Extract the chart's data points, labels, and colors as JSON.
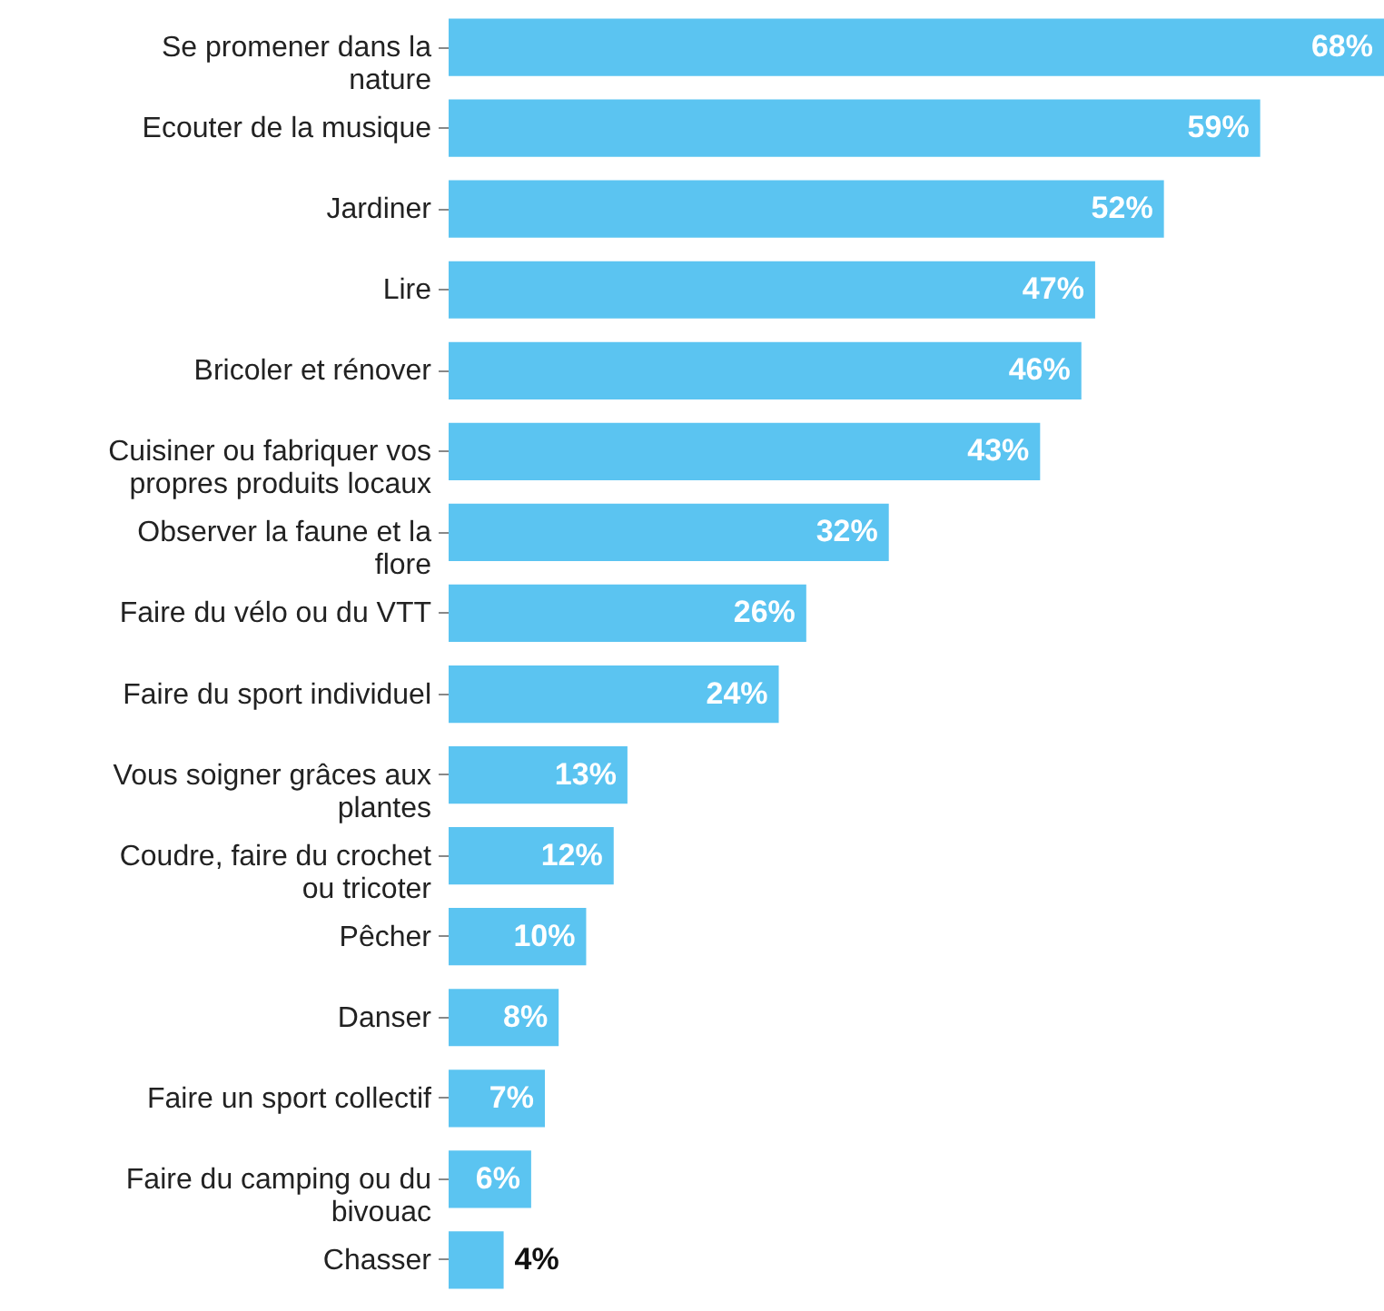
{
  "chart_data": {
    "type": "bar",
    "orientation": "horizontal",
    "color": "#5bc4f1",
    "categories": [
      "Se promener dans la nature",
      "Ecouter de la musique",
      "Jardiner",
      "Lire",
      "Bricoler et rénover",
      "Cuisiner ou fabriquer vos propres produits locaux",
      "Observer la faune et la flore",
      "Faire du vélo ou du VTT",
      "Faire du sport individuel",
      "Vous soigner grâces aux plantes",
      "Coudre, faire du crochet ou tricoter",
      "Pêcher",
      "Danser",
      "Faire un sport collectif",
      "Faire du camping ou du bivouac",
      "Chasser"
    ],
    "values": [
      68,
      59,
      52,
      47,
      46,
      43,
      32,
      26,
      24,
      13,
      12,
      10,
      8,
      7,
      6,
      4
    ],
    "value_labels": [
      "68%",
      "59%",
      "52%",
      "47%",
      "46%",
      "43%",
      "32%",
      "26%",
      "24%",
      "13%",
      "12%",
      "10%",
      "8%",
      "7%",
      "6%",
      "4%"
    ]
  }
}
